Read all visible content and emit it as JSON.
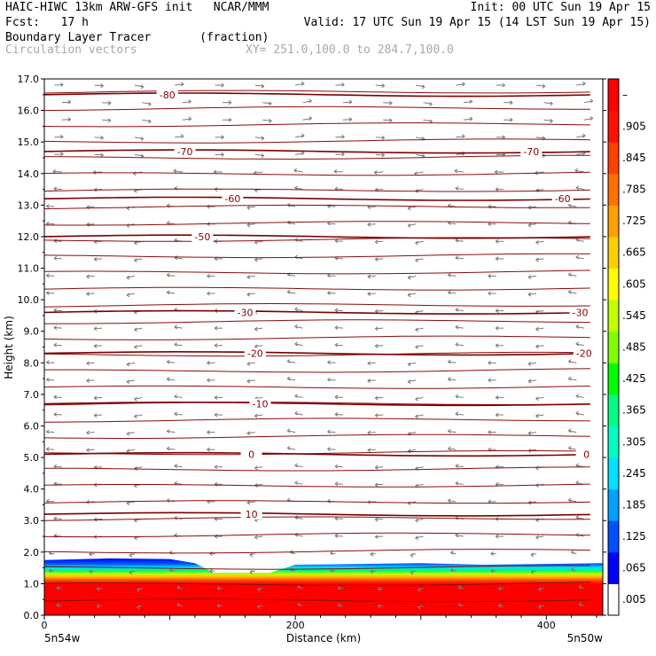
{
  "header": {
    "model_line": "HAIC-HIWC 13km ARW-GFS init   NCAR/MMM",
    "init_line": "Init: 00 UTC Sun 19 Apr 15",
    "fcst_line": "Fcst:   17 h",
    "valid_line": "Valid: 17 UTC Sun 19 Apr 15 (14 LST Sun 19 Apr 15)",
    "field_line": "Boundary Layer Tracer       (fraction)",
    "vectors_line": "Circulation vectors",
    "xy_line": "XY= 251.0,100.0 to 284.7,100.0"
  },
  "chart_data": {
    "type": "heatmap",
    "title": "Boundary Layer Tracer",
    "units": "(fraction)",
    "xlabel": "Distance (km)",
    "ylabel": "Height (km)",
    "xlim": [
      0,
      445
    ],
    "ylim": [
      0,
      17
    ],
    "xticks": [
      0,
      200,
      400
    ],
    "yticks": [
      "0.0",
      "1.0",
      "2.0",
      "3.0",
      "4.0",
      "5.0",
      "6.0",
      "7.0",
      "8.0",
      "9.0",
      "10.0",
      "11.0",
      "12.0",
      "13.0",
      "14.0",
      "15.0",
      "16.0",
      "17.0"
    ],
    "x_endpoint_labels": [
      "5n54w",
      "5n50w"
    ],
    "colorbar": {
      "levels": [
        ".005",
        ".065",
        ".125",
        ".185",
        ".245",
        ".305",
        ".365",
        ".425",
        ".485",
        ".545",
        ".605",
        ".665",
        ".725",
        ".785",
        ".845",
        ".905",
        "–"
      ],
      "colors": [
        "#ffffff",
        "#0000ff",
        "#0050ff",
        "#00a0ff",
        "#00e0ff",
        "#00ffc0",
        "#00ff80",
        "#00ff00",
        "#80ff00",
        "#c0ff00",
        "#ffff00",
        "#ffd000",
        "#ffa000",
        "#ff7000",
        "#ff4000",
        "#ff1000",
        "#ff0000"
      ]
    },
    "boundary_layer_top_km": [
      {
        "x": 0,
        "z": 1.75
      },
      {
        "x": 50,
        "z": 1.8
      },
      {
        "x": 100,
        "z": 1.78
      },
      {
        "x": 120,
        "z": 1.65
      },
      {
        "x": 135,
        "z": 1.35
      },
      {
        "x": 180,
        "z": 1.35
      },
      {
        "x": 200,
        "z": 1.6
      },
      {
        "x": 300,
        "z": 1.65
      },
      {
        "x": 350,
        "z": 1.6
      },
      {
        "x": 445,
        "z": 1.65
      }
    ],
    "temperature_contours": [
      {
        "label": "10",
        "height_km": 3.2
      },
      {
        "label": "0",
        "height_km": 5.1
      },
      {
        "label": "-10",
        "height_km": 6.7
      },
      {
        "label": "-20",
        "height_km": 8.3
      },
      {
        "label": "-30",
        "height_km": 9.6
      },
      {
        "label": "-50",
        "height_km": 12.0
      },
      {
        "label": "-60",
        "height_km": 13.2
      },
      {
        "label": "-70",
        "height_km": 14.7
      },
      {
        "label": "-80",
        "height_km": 16.5
      }
    ],
    "contour_labels": [
      {
        "label": "10",
        "x": 165,
        "height_km": 3.2
      },
      {
        "label": "0",
        "x": 165,
        "height_km": 5.1
      },
      {
        "label": "0",
        "x": 432,
        "height_km": 5.1
      },
      {
        "label": "-10",
        "x": 172,
        "height_km": 6.7
      },
      {
        "label": "-20",
        "x": 168,
        "height_km": 8.3
      },
      {
        "label": "-20",
        "x": 430,
        "height_km": 8.3
      },
      {
        "label": "-30",
        "x": 160,
        "height_km": 9.6
      },
      {
        "label": "-30",
        "x": 427,
        "height_km": 9.6
      },
      {
        "label": "-50",
        "x": 126,
        "height_km": 12.0
      },
      {
        "label": "-60",
        "x": 150,
        "height_km": 13.2
      },
      {
        "label": "-60",
        "x": 413,
        "height_km": 13.2
      },
      {
        "label": "-70",
        "x": 112,
        "height_km": 14.7
      },
      {
        "label": "-70",
        "x": 388,
        "height_km": 14.7
      },
      {
        "label": "-80",
        "x": 98,
        "height_km": 16.5
      }
    ]
  }
}
